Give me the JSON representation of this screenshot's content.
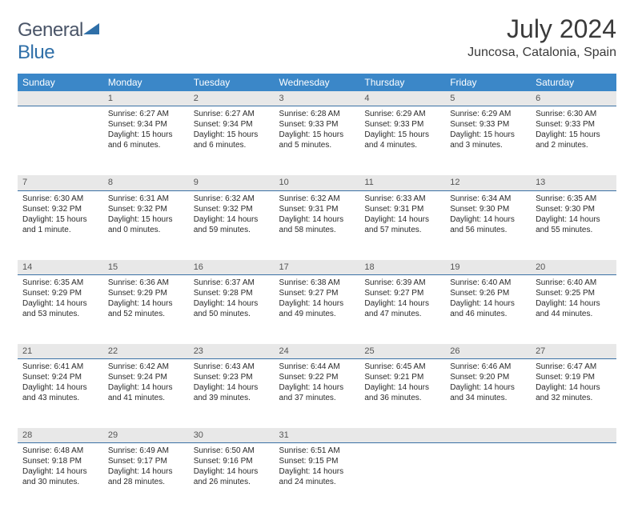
{
  "brand": {
    "part1": "General",
    "part2": "Blue"
  },
  "title": "July 2024",
  "location": "Juncosa, Catalonia, Spain",
  "colors": {
    "header_bg": "#3b87c8",
    "header_text": "#ffffff",
    "daynum_bg": "#e8e8e8",
    "daynum_border": "#3b71a5",
    "text": "#2a2a2a",
    "brand_gray": "#4a5568",
    "brand_blue": "#2f6fa8"
  },
  "typography": {
    "title_fontsize": 32,
    "location_fontsize": 16,
    "weekday_fontsize": 12,
    "cell_fontsize": 10
  },
  "weekdays": [
    "Sunday",
    "Monday",
    "Tuesday",
    "Wednesday",
    "Thursday",
    "Friday",
    "Saturday"
  ],
  "weeks": [
    [
      null,
      {
        "n": "1",
        "sunrise": "6:27 AM",
        "sunset": "9:34 PM",
        "daylight": "15 hours and 6 minutes."
      },
      {
        "n": "2",
        "sunrise": "6:27 AM",
        "sunset": "9:34 PM",
        "daylight": "15 hours and 6 minutes."
      },
      {
        "n": "3",
        "sunrise": "6:28 AM",
        "sunset": "9:33 PM",
        "daylight": "15 hours and 5 minutes."
      },
      {
        "n": "4",
        "sunrise": "6:29 AM",
        "sunset": "9:33 PM",
        "daylight": "15 hours and 4 minutes."
      },
      {
        "n": "5",
        "sunrise": "6:29 AM",
        "sunset": "9:33 PM",
        "daylight": "15 hours and 3 minutes."
      },
      {
        "n": "6",
        "sunrise": "6:30 AM",
        "sunset": "9:33 PM",
        "daylight": "15 hours and 2 minutes."
      }
    ],
    [
      {
        "n": "7",
        "sunrise": "6:30 AM",
        "sunset": "9:32 PM",
        "daylight": "15 hours and 1 minute."
      },
      {
        "n": "8",
        "sunrise": "6:31 AM",
        "sunset": "9:32 PM",
        "daylight": "15 hours and 0 minutes."
      },
      {
        "n": "9",
        "sunrise": "6:32 AM",
        "sunset": "9:32 PM",
        "daylight": "14 hours and 59 minutes."
      },
      {
        "n": "10",
        "sunrise": "6:32 AM",
        "sunset": "9:31 PM",
        "daylight": "14 hours and 58 minutes."
      },
      {
        "n": "11",
        "sunrise": "6:33 AM",
        "sunset": "9:31 PM",
        "daylight": "14 hours and 57 minutes."
      },
      {
        "n": "12",
        "sunrise": "6:34 AM",
        "sunset": "9:30 PM",
        "daylight": "14 hours and 56 minutes."
      },
      {
        "n": "13",
        "sunrise": "6:35 AM",
        "sunset": "9:30 PM",
        "daylight": "14 hours and 55 minutes."
      }
    ],
    [
      {
        "n": "14",
        "sunrise": "6:35 AM",
        "sunset": "9:29 PM",
        "daylight": "14 hours and 53 minutes."
      },
      {
        "n": "15",
        "sunrise": "6:36 AM",
        "sunset": "9:29 PM",
        "daylight": "14 hours and 52 minutes."
      },
      {
        "n": "16",
        "sunrise": "6:37 AM",
        "sunset": "9:28 PM",
        "daylight": "14 hours and 50 minutes."
      },
      {
        "n": "17",
        "sunrise": "6:38 AM",
        "sunset": "9:27 PM",
        "daylight": "14 hours and 49 minutes."
      },
      {
        "n": "18",
        "sunrise": "6:39 AM",
        "sunset": "9:27 PM",
        "daylight": "14 hours and 47 minutes."
      },
      {
        "n": "19",
        "sunrise": "6:40 AM",
        "sunset": "9:26 PM",
        "daylight": "14 hours and 46 minutes."
      },
      {
        "n": "20",
        "sunrise": "6:40 AM",
        "sunset": "9:25 PM",
        "daylight": "14 hours and 44 minutes."
      }
    ],
    [
      {
        "n": "21",
        "sunrise": "6:41 AM",
        "sunset": "9:24 PM",
        "daylight": "14 hours and 43 minutes."
      },
      {
        "n": "22",
        "sunrise": "6:42 AM",
        "sunset": "9:24 PM",
        "daylight": "14 hours and 41 minutes."
      },
      {
        "n": "23",
        "sunrise": "6:43 AM",
        "sunset": "9:23 PM",
        "daylight": "14 hours and 39 minutes."
      },
      {
        "n": "24",
        "sunrise": "6:44 AM",
        "sunset": "9:22 PM",
        "daylight": "14 hours and 37 minutes."
      },
      {
        "n": "25",
        "sunrise": "6:45 AM",
        "sunset": "9:21 PM",
        "daylight": "14 hours and 36 minutes."
      },
      {
        "n": "26",
        "sunrise": "6:46 AM",
        "sunset": "9:20 PM",
        "daylight": "14 hours and 34 minutes."
      },
      {
        "n": "27",
        "sunrise": "6:47 AM",
        "sunset": "9:19 PM",
        "daylight": "14 hours and 32 minutes."
      }
    ],
    [
      {
        "n": "28",
        "sunrise": "6:48 AM",
        "sunset": "9:18 PM",
        "daylight": "14 hours and 30 minutes."
      },
      {
        "n": "29",
        "sunrise": "6:49 AM",
        "sunset": "9:17 PM",
        "daylight": "14 hours and 28 minutes."
      },
      {
        "n": "30",
        "sunrise": "6:50 AM",
        "sunset": "9:16 PM",
        "daylight": "14 hours and 26 minutes."
      },
      {
        "n": "31",
        "sunrise": "6:51 AM",
        "sunset": "9:15 PM",
        "daylight": "14 hours and 24 minutes."
      },
      null,
      null,
      null
    ]
  ],
  "labels": {
    "sunrise": "Sunrise:",
    "sunset": "Sunset:",
    "daylight": "Daylight:"
  }
}
